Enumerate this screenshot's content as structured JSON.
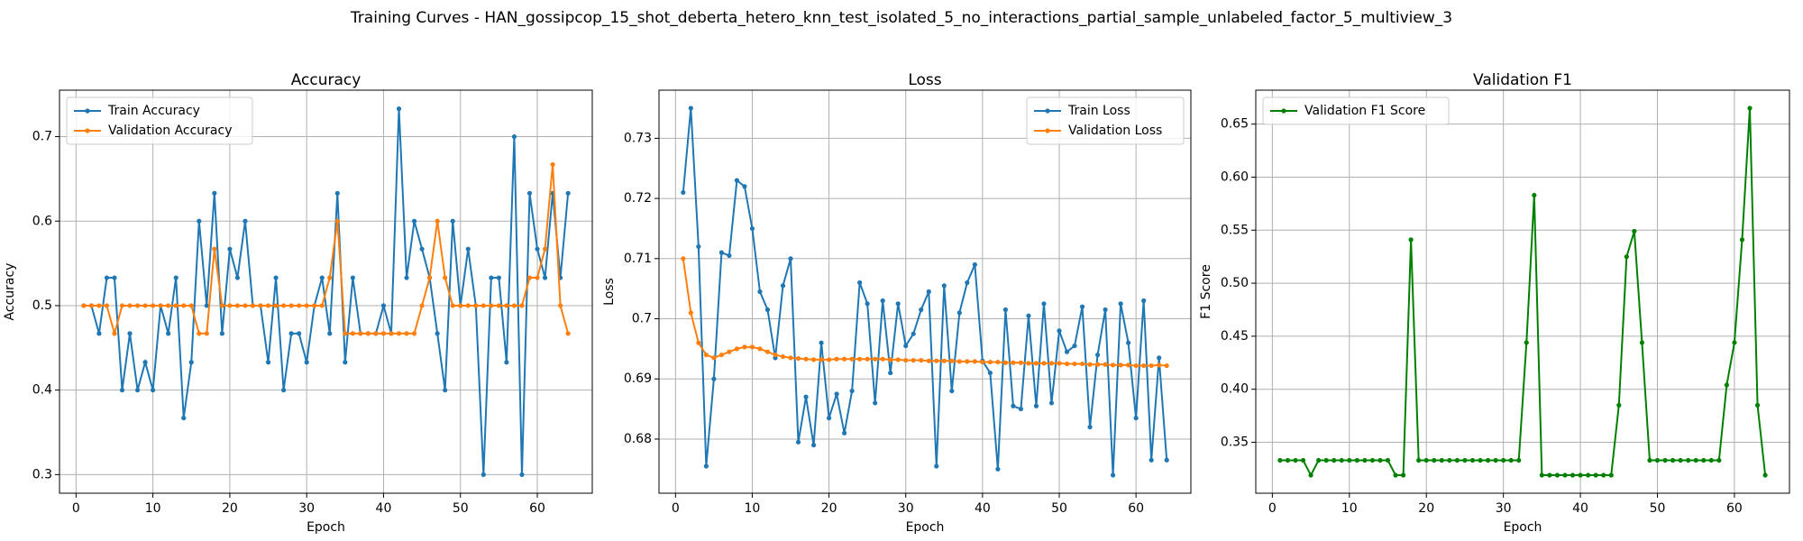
{
  "title": "Training Curves - HAN_gossipcop_15_shot_deberta_hetero_knn_test_isolated_5_no_interactions_partial_sample_unlabeled_factor_5_multiview_3",
  "chart_data": [
    {
      "type": "line",
      "title": "Accuracy",
      "x_label": "Epoch",
      "y_label": "Accuracy",
      "grid": true,
      "legend": "upper left",
      "x": [
        1,
        2,
        3,
        4,
        5,
        6,
        7,
        8,
        9,
        10,
        11,
        12,
        13,
        14,
        15,
        16,
        17,
        18,
        19,
        20,
        21,
        22,
        23,
        24,
        25,
        26,
        27,
        28,
        29,
        30,
        31,
        32,
        33,
        34,
        35,
        36,
        37,
        38,
        39,
        40,
        41,
        42,
        43,
        44,
        45,
        46,
        47,
        48,
        49,
        50,
        51,
        52,
        53,
        54,
        55,
        56,
        57,
        58,
        59,
        60,
        61,
        62,
        63,
        64
      ],
      "xlim": [
        -2.15,
        67.15
      ],
      "xticks": [
        0,
        10,
        20,
        30,
        40,
        50,
        60
      ],
      "ylim": [
        0.278,
        0.755
      ],
      "yticks": [
        0.3,
        0.4,
        0.5,
        0.6,
        0.7
      ],
      "series": [
        {
          "name": "Train Accuracy",
          "color": "#1f77b4",
          "values": [
            0.5,
            0.5,
            0.467,
            0.533,
            0.533,
            0.4,
            0.467,
            0.4,
            0.433,
            0.4,
            0.5,
            0.467,
            0.533,
            0.367,
            0.433,
            0.6,
            0.5,
            0.633,
            0.467,
            0.567,
            0.533,
            0.6,
            0.5,
            0.5,
            0.433,
            0.533,
            0.4,
            0.467,
            0.467,
            0.433,
            0.5,
            0.533,
            0.467,
            0.633,
            0.433,
            0.533,
            0.467,
            0.467,
            0.467,
            0.5,
            0.467,
            0.733,
            0.533,
            0.6,
            0.567,
            0.533,
            0.467,
            0.4,
            0.6,
            0.5,
            0.567,
            0.5,
            0.3,
            0.533,
            0.533,
            0.433,
            0.7,
            0.3,
            0.633,
            0.567,
            0.533,
            0.633,
            0.533,
            0.633
          ]
        },
        {
          "name": "Validation Accuracy",
          "color": "#ff7f0e",
          "values": [
            0.5,
            0.5,
            0.5,
            0.5,
            0.467,
            0.5,
            0.5,
            0.5,
            0.5,
            0.5,
            0.5,
            0.5,
            0.5,
            0.5,
            0.5,
            0.467,
            0.467,
            0.567,
            0.5,
            0.5,
            0.5,
            0.5,
            0.5,
            0.5,
            0.5,
            0.5,
            0.5,
            0.5,
            0.5,
            0.5,
            0.5,
            0.5,
            0.533,
            0.6,
            0.467,
            0.467,
            0.467,
            0.467,
            0.467,
            0.467,
            0.467,
            0.467,
            0.467,
            0.467,
            0.5,
            0.533,
            0.6,
            0.533,
            0.5,
            0.5,
            0.5,
            0.5,
            0.5,
            0.5,
            0.5,
            0.5,
            0.5,
            0.5,
            0.533,
            0.533,
            0.567,
            0.667,
            0.5,
            0.467
          ]
        }
      ]
    },
    {
      "type": "line",
      "title": "Loss",
      "x_label": "Epoch",
      "y_label": "Loss",
      "grid": true,
      "legend": "upper right",
      "x": [
        1,
        2,
        3,
        4,
        5,
        6,
        7,
        8,
        9,
        10,
        11,
        12,
        13,
        14,
        15,
        16,
        17,
        18,
        19,
        20,
        21,
        22,
        23,
        24,
        25,
        26,
        27,
        28,
        29,
        30,
        31,
        32,
        33,
        34,
        35,
        36,
        37,
        38,
        39,
        40,
        41,
        42,
        43,
        44,
        45,
        46,
        47,
        48,
        49,
        50,
        51,
        52,
        53,
        54,
        55,
        56,
        57,
        58,
        59,
        60,
        61,
        62,
        63,
        64
      ],
      "xlim": [
        -2.15,
        67.15
      ],
      "xticks": [
        0,
        10,
        20,
        30,
        40,
        50,
        60
      ],
      "ylim": [
        0.671,
        0.738
      ],
      "yticks": [
        0.68,
        0.69,
        0.7,
        0.71,
        0.72,
        0.73
      ],
      "series": [
        {
          "name": "Train Loss",
          "color": "#1f77b4",
          "values": [
            0.721,
            0.735,
            0.712,
            0.6755,
            0.69,
            0.711,
            0.7105,
            0.723,
            0.722,
            0.715,
            0.7045,
            0.7015,
            0.6935,
            0.7055,
            0.71,
            0.6795,
            0.687,
            0.679,
            0.696,
            0.6835,
            0.6875,
            0.681,
            0.688,
            0.706,
            0.7025,
            0.686,
            0.703,
            0.691,
            0.7025,
            0.6955,
            0.6975,
            0.7015,
            0.7045,
            0.6755,
            0.7055,
            0.688,
            0.701,
            0.706,
            0.709,
            0.693,
            0.691,
            0.675,
            0.7015,
            0.6855,
            0.685,
            0.7005,
            0.6855,
            0.7025,
            0.686,
            0.698,
            0.6945,
            0.6955,
            0.702,
            0.682,
            0.694,
            0.7015,
            0.674,
            0.7025,
            0.696,
            0.6835,
            0.703,
            0.6765,
            0.6935,
            0.6765
          ]
        },
        {
          "name": "Validation Loss",
          "color": "#ff7f0e",
          "values": [
            0.71,
            0.701,
            0.696,
            0.694,
            0.6935,
            0.694,
            0.6945,
            0.695,
            0.6953,
            0.6953,
            0.695,
            0.6945,
            0.694,
            0.6937,
            0.6935,
            0.6934,
            0.6933,
            0.6932,
            0.6932,
            0.6932,
            0.6933,
            0.6933,
            0.6933,
            0.6933,
            0.6933,
            0.6933,
            0.6933,
            0.6932,
            0.6932,
            0.6931,
            0.6931,
            0.6931,
            0.693,
            0.693,
            0.693,
            0.693,
            0.6929,
            0.6929,
            0.6929,
            0.6928,
            0.6928,
            0.6928,
            0.6927,
            0.6927,
            0.6927,
            0.6926,
            0.6926,
            0.6926,
            0.6926,
            0.6926,
            0.6925,
            0.6925,
            0.6925,
            0.6924,
            0.6924,
            0.6924,
            0.6923,
            0.6923,
            0.6923,
            0.6922,
            0.6922,
            0.6922,
            0.6923,
            0.6922
          ]
        }
      ]
    },
    {
      "type": "line",
      "title": "Validation F1",
      "x_label": "Epoch",
      "y_label": "F1 Score",
      "grid": true,
      "legend": "upper left",
      "x": [
        1,
        2,
        3,
        4,
        5,
        6,
        7,
        8,
        9,
        10,
        11,
        12,
        13,
        14,
        15,
        16,
        17,
        18,
        19,
        20,
        21,
        22,
        23,
        24,
        25,
        26,
        27,
        28,
        29,
        30,
        31,
        32,
        33,
        34,
        35,
        36,
        37,
        38,
        39,
        40,
        41,
        42,
        43,
        44,
        45,
        46,
        47,
        48,
        49,
        50,
        51,
        52,
        53,
        54,
        55,
        56,
        57,
        58,
        59,
        60,
        61,
        62,
        63,
        64
      ],
      "xlim": [
        -2.15,
        67.15
      ],
      "xticks": [
        0,
        10,
        20,
        30,
        40,
        50,
        60
      ],
      "ylim": [
        0.302,
        0.682
      ],
      "yticks": [
        0.35,
        {
          "value": 0.4,
          "label": "0.40"
        },
        0.45,
        {
          "value": 0.5,
          "label": "0.50"
        },
        0.55,
        {
          "value": 0.6,
          "label": "0.60"
        },
        0.65
      ],
      "series": [
        {
          "name": "Validation F1 Score",
          "color": "#008000",
          "values": [
            0.333,
            0.333,
            0.333,
            0.333,
            0.319,
            0.333,
            0.333,
            0.333,
            0.333,
            0.333,
            0.333,
            0.333,
            0.333,
            0.333,
            0.333,
            0.319,
            0.319,
            0.541,
            0.333,
            0.333,
            0.333,
            0.333,
            0.333,
            0.333,
            0.333,
            0.333,
            0.333,
            0.333,
            0.333,
            0.333,
            0.333,
            0.333,
            0.444,
            0.583,
            0.319,
            0.319,
            0.319,
            0.319,
            0.319,
            0.319,
            0.319,
            0.319,
            0.319,
            0.319,
            0.385,
            0.525,
            0.549,
            0.444,
            0.333,
            0.333,
            0.333,
            0.333,
            0.333,
            0.333,
            0.333,
            0.333,
            0.333,
            0.333,
            0.404,
            0.444,
            0.541,
            0.665,
            0.385,
            0.319
          ]
        }
      ]
    }
  ]
}
